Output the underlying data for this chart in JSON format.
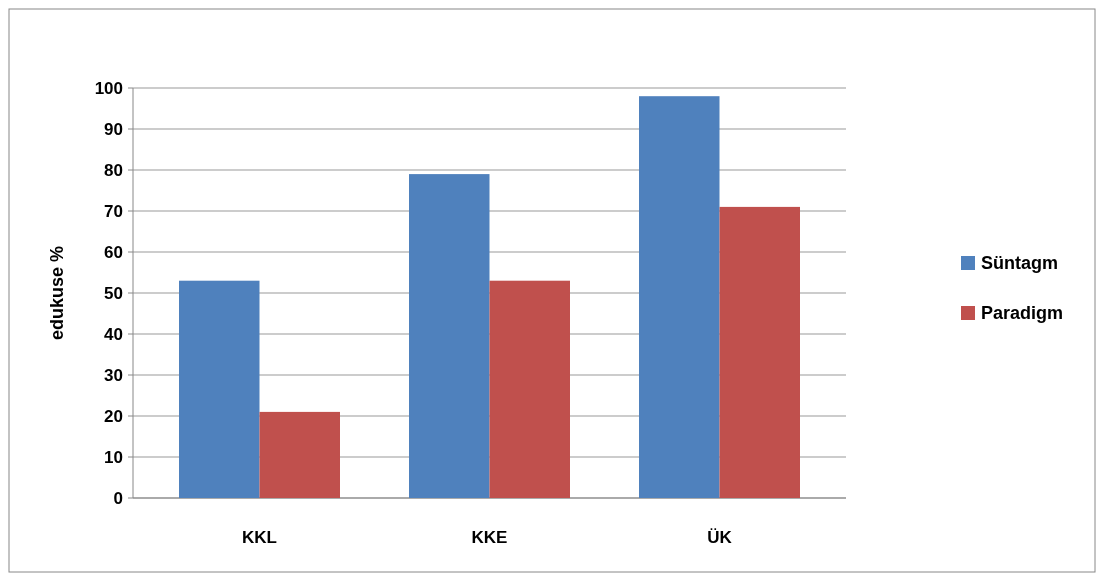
{
  "chart_data": {
    "type": "bar",
    "ylabel": "edukuse %",
    "categories": [
      "KKL",
      "KKE",
      "ÜK"
    ],
    "series": [
      {
        "name": "Süntagm",
        "color": "#4f81bd",
        "values": [
          53,
          79,
          98
        ]
      },
      {
        "name": "Paradigm",
        "color": "#c0504d",
        "values": [
          21,
          53,
          71
        ]
      }
    ],
    "ylim": [
      0,
      100
    ],
    "yticks": [
      0,
      10,
      20,
      30,
      40,
      50,
      60,
      70,
      80,
      90,
      100
    ],
    "grid": "y",
    "legend": "right"
  }
}
